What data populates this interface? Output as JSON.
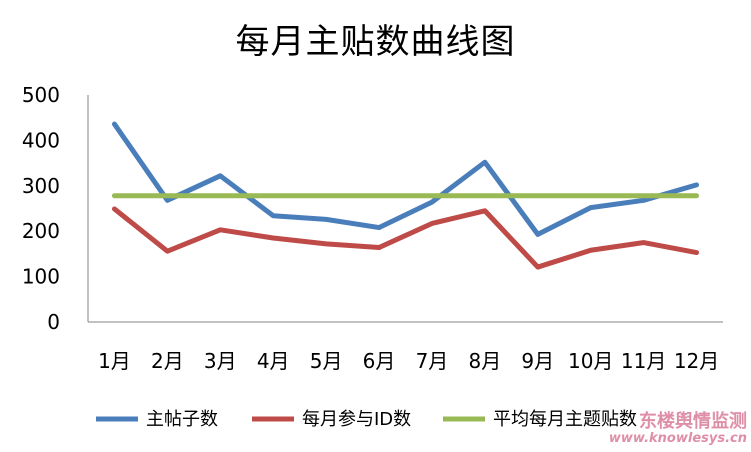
{
  "chart_data": {
    "type": "line",
    "title": "每月主贴数曲线图",
    "categories": [
      "1月",
      "2月",
      "3月",
      "4月",
      "5月",
      "6月",
      "7月",
      "8月",
      "9月",
      "10月",
      "11月",
      "12月"
    ],
    "ylim": [
      0,
      500
    ],
    "yticks": [
      0,
      100,
      200,
      300,
      400,
      500
    ],
    "grid": false,
    "legend_position": "bottom",
    "series": [
      {
        "name": "主帖子数",
        "color": "#4a7ebb",
        "values": [
          436,
          268,
          322,
          234,
          226,
          208,
          264,
          352,
          193,
          252,
          268,
          302
        ]
      },
      {
        "name": "每月参与ID数",
        "color": "#be4b48",
        "values": [
          249,
          156,
          203,
          185,
          172,
          164,
          217,
          245,
          121,
          158,
          175,
          153
        ]
      },
      {
        "name": "平均每月主题贴数",
        "color": "#98b954",
        "values": [
          278,
          278,
          278,
          278,
          278,
          278,
          278,
          278,
          278,
          278,
          278,
          278
        ]
      }
    ]
  },
  "watermark": {
    "text": "东楼舆情监测",
    "url": "www.knowlesys.cn"
  }
}
